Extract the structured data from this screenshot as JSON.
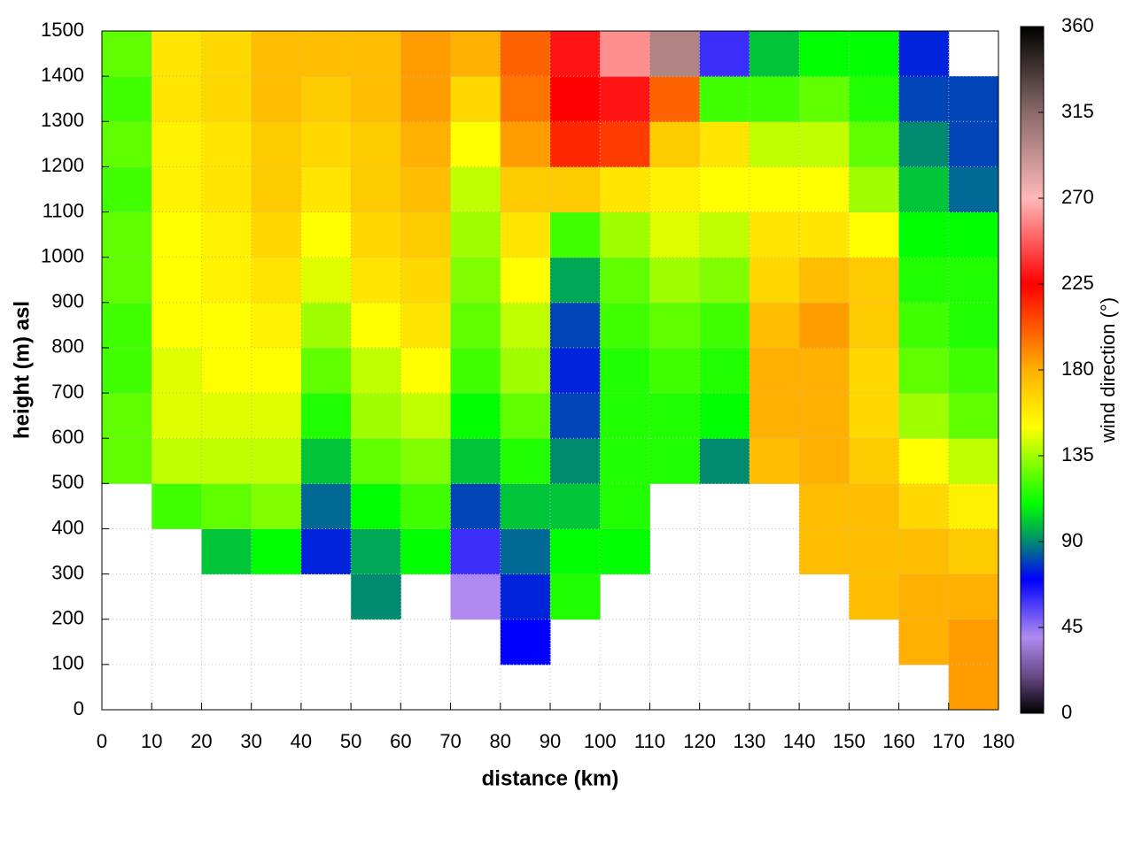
{
  "chart_data": {
    "type": "heatmap",
    "xlabel": "distance (km)",
    "ylabel": "height (m) asl",
    "zlabel": "wind direction (°)",
    "x": [
      5,
      15,
      25,
      35,
      45,
      55,
      65,
      75,
      85,
      95,
      105,
      115,
      125,
      135,
      145,
      155,
      165,
      175
    ],
    "y": [
      50,
      150,
      250,
      350,
      450,
      550,
      650,
      750,
      850,
      950,
      1050,
      1150,
      1250,
      1350,
      1450
    ],
    "z": [
      [
        null,
        null,
        null,
        null,
        null,
        125,
        125,
        120,
        120,
        125,
        125,
        120,
        125,
        120,
        125
      ],
      [
        null,
        null,
        null,
        null,
        120,
        140,
        145,
        145,
        150,
        150,
        150,
        155,
        155,
        160,
        160
      ],
      [
        null,
        null,
        null,
        100,
        125,
        140,
        145,
        150,
        150,
        155,
        155,
        160,
        160,
        165,
        165
      ],
      [
        null,
        null,
        null,
        110,
        130,
        140,
        145,
        150,
        155,
        160,
        165,
        170,
        170,
        175,
        175
      ],
      [
        null,
        null,
        null,
        75,
        85,
        100,
        115,
        125,
        135,
        145,
        150,
        160,
        165,
        170,
        175
      ],
      [
        null,
        null,
        90,
        95,
        110,
        125,
        135,
        140,
        150,
        160,
        165,
        170,
        170,
        175,
        175
      ],
      [
        null,
        null,
        null,
        110,
        120,
        130,
        140,
        150,
        160,
        165,
        170,
        175,
        180,
        185,
        185
      ],
      [
        null,
        null,
        40,
        60,
        80,
        100,
        110,
        120,
        125,
        130,
        135,
        140,
        150,
        165,
        180
      ],
      [
        null,
        70,
        75,
        85,
        100,
        115,
        125,
        135,
        140,
        150,
        160,
        170,
        185,
        195,
        200
      ],
      [
        null,
        null,
        115,
        110,
        100,
        90,
        80,
        75,
        80,
        95,
        120,
        170,
        215,
        225,
        230
      ],
      [
        null,
        null,
        null,
        110,
        115,
        115,
        115,
        115,
        120,
        125,
        135,
        160,
        210,
        230,
        260
      ],
      [
        null,
        null,
        null,
        null,
        null,
        115,
        115,
        120,
        125,
        135,
        145,
        155,
        170,
        200,
        300
      ],
      [
        null,
        null,
        null,
        null,
        null,
        90,
        110,
        115,
        120,
        130,
        140,
        150,
        160,
        120,
        60
      ],
      [
        null,
        null,
        null,
        null,
        null,
        175,
        180,
        180,
        175,
        165,
        160,
        150,
        140,
        120,
        100
      ],
      [
        null,
        null,
        null,
        175,
        175,
        180,
        180,
        180,
        185,
        175,
        160,
        150,
        140,
        125,
        110
      ],
      [
        null,
        null,
        175,
        175,
        175,
        170,
        165,
        165,
        170,
        170,
        150,
        135,
        125,
        115,
        110
      ],
      [
        null,
        180,
        180,
        175,
        165,
        150,
        135,
        125,
        120,
        115,
        110,
        100,
        90,
        80,
        75
      ],
      [
        185,
        185,
        180,
        170,
        155,
        140,
        125,
        120,
        115,
        115,
        110,
        85,
        80,
        80,
        null
      ]
    ],
    "xlim": [
      0,
      180
    ],
    "xticks": [
      0,
      10,
      20,
      30,
      40,
      50,
      60,
      70,
      80,
      90,
      100,
      110,
      120,
      130,
      140,
      150,
      160,
      170,
      180
    ],
    "ylim": [
      0,
      1500
    ],
    "yticks": [
      0,
      100,
      200,
      300,
      400,
      500,
      600,
      700,
      800,
      900,
      1000,
      1100,
      1200,
      1300,
      1400,
      1500
    ],
    "zlim": [
      0,
      360
    ],
    "zticks": [
      0,
      45,
      90,
      135,
      180,
      225,
      270,
      315,
      360
    ],
    "colorscale": [
      [
        0,
        "#000000"
      ],
      [
        20,
        "#6a4a8a"
      ],
      [
        40,
        "#b08af0"
      ],
      [
        70,
        "#0000ff"
      ],
      [
        90,
        "#008a70"
      ],
      [
        110,
        "#00ff00"
      ],
      [
        150,
        "#ffff00"
      ],
      [
        180,
        "#ffb000"
      ],
      [
        225,
        "#ff0000"
      ],
      [
        270,
        "#ffb8b8"
      ],
      [
        315,
        "#8a6a6a"
      ],
      [
        360,
        "#000000"
      ]
    ],
    "grid": true
  }
}
